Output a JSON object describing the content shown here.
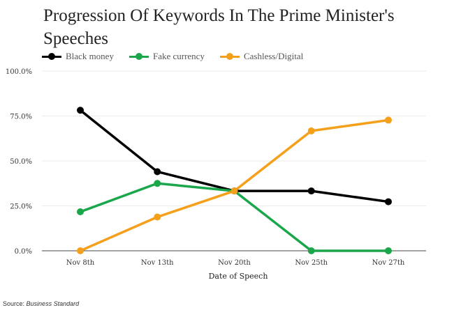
{
  "chart_data": {
    "type": "line",
    "title": "Progression Of Keywords In The Prime Minister's Speeches",
    "xlabel": "Date of Speech",
    "ylabel": "",
    "categories": [
      "Nov 8th",
      "Nov 13th",
      "Nov 20th",
      "Nov 25th",
      "Nov 27th"
    ],
    "ylim": [
      0,
      100
    ],
    "yticks": [
      "0.0%",
      "25.0%",
      "50.0%",
      "75.0%",
      "100.0%"
    ],
    "ytick_values": [
      0,
      25,
      50,
      75,
      100
    ],
    "grid": true,
    "legend_position": "top-left",
    "series": [
      {
        "name": "Black money",
        "color": "#000000",
        "values": [
          78.2,
          44.0,
          33.3,
          33.3,
          27.3
        ]
      },
      {
        "name": "Fake currency",
        "color": "#1aa64a",
        "values": [
          21.7,
          37.5,
          33.3,
          0,
          0
        ]
      },
      {
        "name": "Cashless/Digital",
        "color": "#f5a01a",
        "values": [
          0,
          18.8,
          33.3,
          66.7,
          72.7
        ]
      }
    ]
  },
  "source": {
    "label": "Source:",
    "name": "Business Standard"
  }
}
